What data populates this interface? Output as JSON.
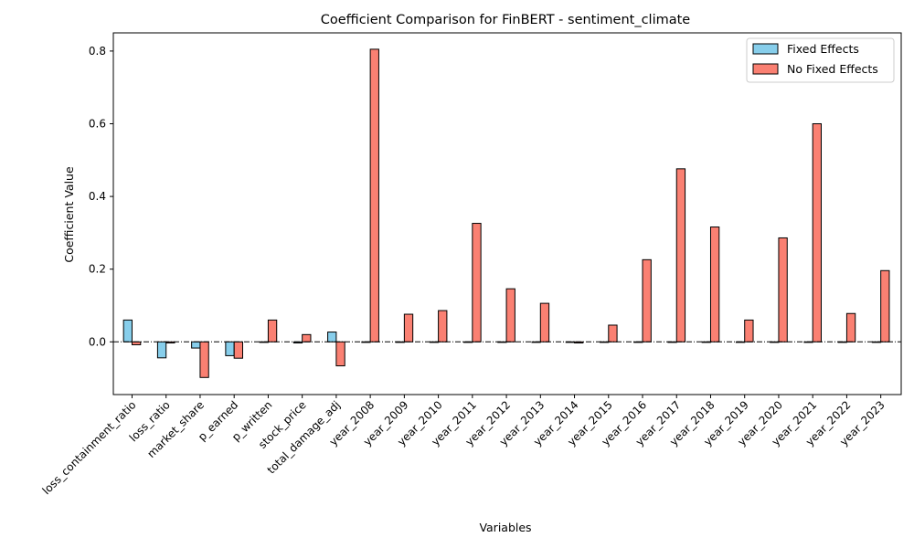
{
  "chart_data": {
    "type": "bar",
    "title": "Coefficient Comparison for FinBERT - sentiment_climate",
    "xlabel": "Variables",
    "ylabel": "Coefficient Value",
    "ylim": [
      -0.145,
      0.85
    ],
    "yticks": [
      0.0,
      0.2,
      0.4,
      0.6,
      0.8
    ],
    "ytick_labels": [
      "0.0",
      "0.2",
      "0.4",
      "0.6",
      "0.8"
    ],
    "grid": false,
    "legend_position": "top-right",
    "zero_line": true,
    "categories": [
      "loss_containment_ratio",
      "loss_ratio",
      "market_share",
      "p_earned",
      "p_written",
      "stock_price",
      "total_damage_adj",
      "year_2008",
      "year_2009",
      "year_2010",
      "year_2011",
      "year_2012",
      "year_2013",
      "year_2014",
      "year_2015",
      "year_2016",
      "year_2017",
      "year_2018",
      "year_2019",
      "year_2020",
      "year_2021",
      "year_2022",
      "year_2023"
    ],
    "series": [
      {
        "name": "Fixed Effects",
        "color": "#87ceeb",
        "values": [
          0.06,
          -0.044,
          -0.017,
          -0.038,
          0.0,
          -0.003,
          0.027,
          0.0,
          0.0,
          0.0,
          0.0,
          0.0,
          0.0,
          0.0,
          0.0,
          0.0,
          0.0,
          0.0,
          0.0,
          0.0,
          0.0,
          0.0,
          0.0
        ]
      },
      {
        "name": "No Fixed Effects",
        "color": "#fa8072",
        "values": [
          -0.008,
          -0.003,
          -0.098,
          -0.045,
          0.06,
          0.02,
          -0.066,
          0.805,
          0.076,
          0.086,
          0.326,
          0.146,
          0.106,
          -0.003,
          0.046,
          0.226,
          0.476,
          0.316,
          0.06,
          0.286,
          0.6,
          0.078,
          0.196
        ]
      }
    ]
  }
}
